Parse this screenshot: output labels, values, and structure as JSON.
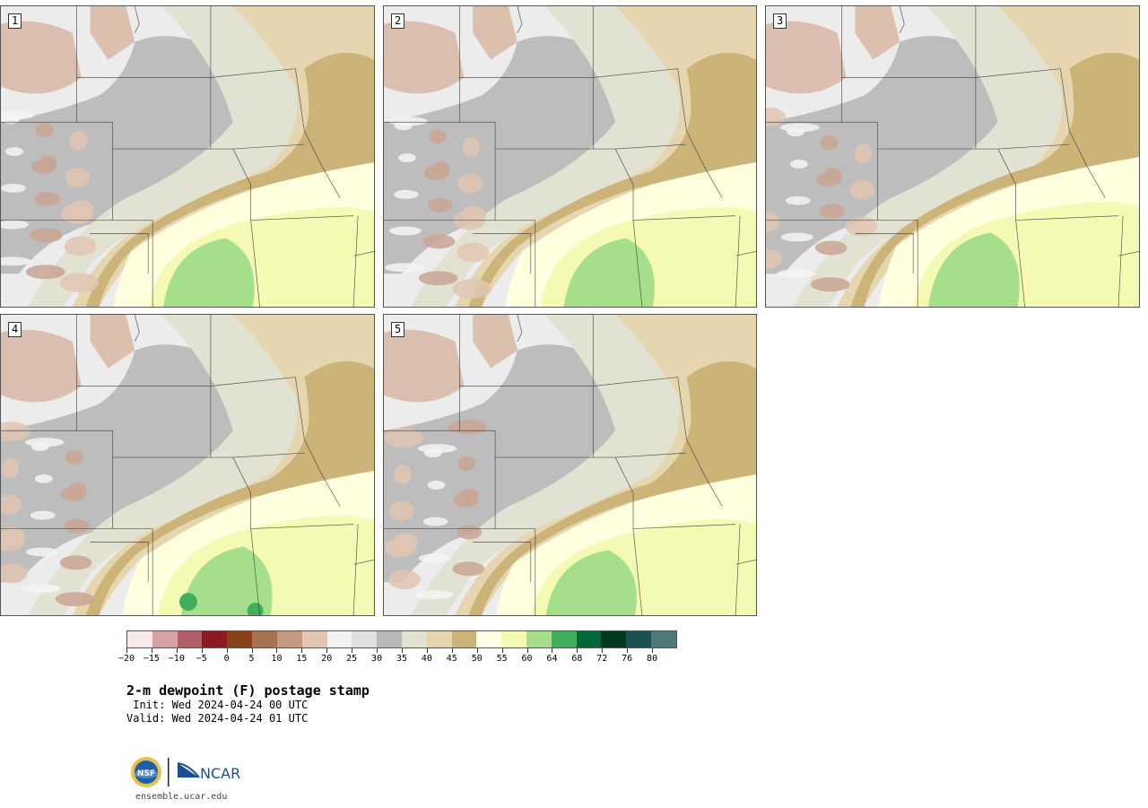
{
  "panels": [
    {
      "label": "1"
    },
    {
      "label": "2"
    },
    {
      "label": "3"
    },
    {
      "label": "4"
    },
    {
      "label": "5"
    }
  ],
  "colorbar": {
    "colors": [
      "#f7e8ea",
      "#d7a1a8",
      "#b05f68",
      "#8b1a22",
      "#8a4318",
      "#a67452",
      "#c49a80",
      "#e0c6b3",
      "#f2f2f2",
      "#e0e0e0",
      "#b7b7b7",
      "#e2e2d2",
      "#e5d6b0",
      "#ccb479",
      "#ffffe8",
      "#f4f9b4",
      "#a6df8c",
      "#41ae5d",
      "#006837",
      "#00391e",
      "#1a5050",
      "#4e7a7a"
    ],
    "ticks": [
      "-20",
      "-15",
      "-10",
      "-5",
      "0",
      "5",
      "10",
      "15",
      "20",
      "25",
      "30",
      "35",
      "40",
      "45",
      "50",
      "55",
      "60",
      "64",
      "68",
      "72",
      "76",
      "80"
    ]
  },
  "title": "2-m dewpoint (F) postage stamp",
  "init_line": " Init: Wed 2024-04-24 00 UTC",
  "valid_line": "Valid: Wed 2024-04-24 01 UTC",
  "logos": {
    "nsf": "NSF",
    "ncar": "NCAR"
  },
  "url": "ensemble.ucar.edu"
}
